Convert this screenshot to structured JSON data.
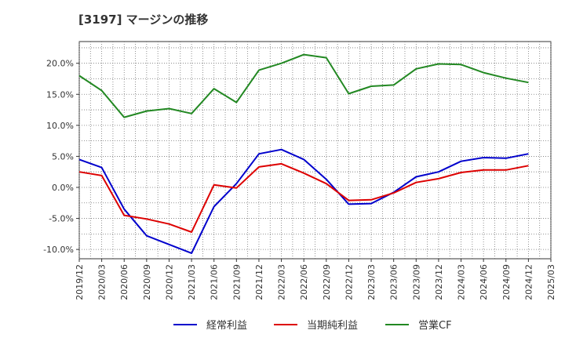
{
  "title": "[3197]  マージンの推移",
  "chart_data": {
    "type": "line",
    "title": "[3197]  マージンの推移",
    "xlabel": "",
    "ylabel": "",
    "ylim": [
      -11.5,
      23.5
    ],
    "yticks": [
      -10,
      -5,
      0,
      5,
      10,
      15,
      20
    ],
    "ytick_labels": [
      "-10.0%",
      "-5.0%",
      "0.0%",
      "5.0%",
      "10.0%",
      "15.0%",
      "20.0%"
    ],
    "x": [
      "2019/12",
      "2020/03",
      "2020/06",
      "2020/09",
      "2020/12",
      "2021/03",
      "2021/06",
      "2021/09",
      "2021/12",
      "2022/03",
      "2022/06",
      "2022/09",
      "2022/12",
      "2023/03",
      "2023/06",
      "2023/09",
      "2023/12",
      "2024/03",
      "2024/06",
      "2024/09",
      "2024/12",
      "2025/03"
    ],
    "grid": true,
    "legend_position": "bottom",
    "series": [
      {
        "name": "経常利益",
        "color": "#0000cc",
        "values": [
          4.5,
          3.2,
          -3.5,
          -7.8,
          -9.2,
          -10.6,
          -3.1,
          0.6,
          5.4,
          6.1,
          4.5,
          1.3,
          -2.7,
          -2.6,
          -0.8,
          1.7,
          2.5,
          4.2,
          4.8,
          4.7,
          5.4,
          null
        ]
      },
      {
        "name": "当期純利益",
        "color": "#dd0000",
        "values": [
          2.5,
          1.9,
          -4.5,
          -5.1,
          -5.9,
          -7.2,
          0.4,
          -0.1,
          3.3,
          3.8,
          2.3,
          0.6,
          -2.1,
          -2.0,
          -0.9,
          0.8,
          1.4,
          2.4,
          2.8,
          2.8,
          3.5,
          null
        ]
      },
      {
        "name": "営業CF",
        "color": "#228822",
        "values": [
          18.0,
          15.6,
          11.3,
          12.3,
          12.7,
          11.9,
          15.9,
          13.7,
          18.9,
          20.0,
          21.4,
          20.9,
          15.1,
          16.3,
          16.5,
          19.1,
          19.9,
          19.8,
          18.5,
          17.6,
          16.9,
          null
        ]
      }
    ]
  }
}
